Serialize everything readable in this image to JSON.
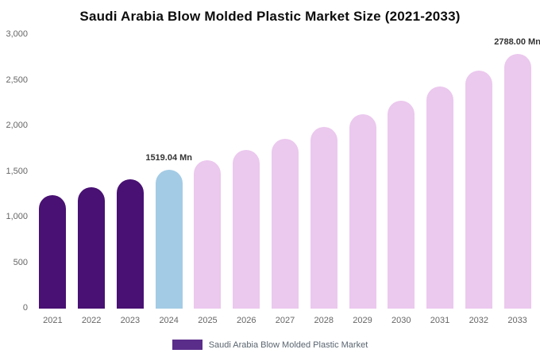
{
  "chart_data": {
    "type": "bar",
    "title": "Saudi Arabia Blow Molded Plastic Market Size (2021-2033)",
    "categories": [
      "2021",
      "2022",
      "2023",
      "2024",
      "2025",
      "2026",
      "2027",
      "2028",
      "2029",
      "2030",
      "2031",
      "2032",
      "2033"
    ],
    "values": [
      1240,
      1327,
      1420,
      1519.04,
      1625,
      1739,
      1861,
      1991,
      2130,
      2279,
      2439,
      2609,
      2788
    ],
    "colors": [
      "#481173",
      "#481173",
      "#481173",
      "#a3cbe5",
      "#ebc8ee",
      "#ebc8ee",
      "#ebc8ee",
      "#ebc8ee",
      "#ebc8ee",
      "#ebc8ee",
      "#ebc8ee",
      "#ebc8ee",
      "#ebc8ee"
    ],
    "annotations": [
      {
        "category": "2024",
        "text": "1519.04 Mn"
      },
      {
        "category": "2033",
        "text": "2788.00 Mn"
      }
    ],
    "ylim": [
      0,
      3000
    ],
    "yticks": [
      0,
      500,
      1000,
      1500,
      2000,
      2500,
      3000
    ],
    "ytick_labels": [
      "0",
      "500",
      "1,000",
      "1,500",
      "2,000",
      "2,500",
      "3,000"
    ],
    "grid": false,
    "legend_position": "bottom",
    "legend_label": "Saudi Arabia Blow Molded Plastic Market",
    "legend_color": "#5b2d8a"
  }
}
